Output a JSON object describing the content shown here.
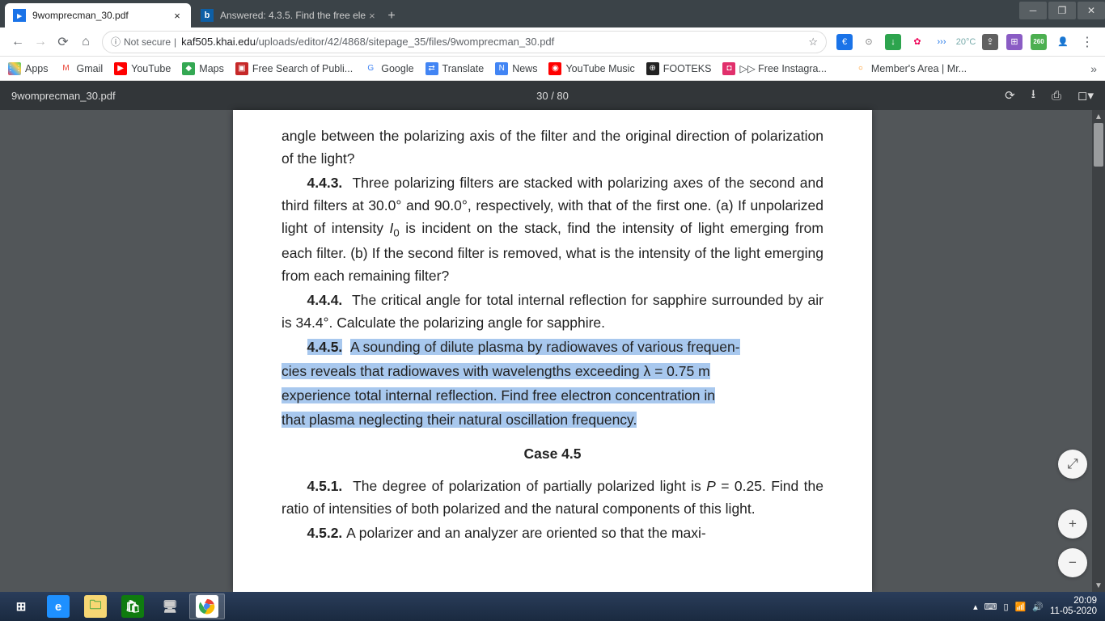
{
  "tabs": [
    {
      "title": "9womprecman_30.pdf",
      "active": true,
      "icon_bg": "#1a73e8",
      "icon_text": "▸"
    },
    {
      "title": "Answered: 4.3.5. Find the free ele",
      "active": false,
      "icon_bg": "#0d5fa6",
      "icon_text": "b"
    }
  ],
  "address": {
    "secure_label": "Not secure",
    "host": "kaf505.khai.edu",
    "path": "/uploads/editor/42/4868/sitepage_35/files/9womprecman_30.pdf"
  },
  "ext_icons": [
    {
      "bg": "#1a73e8",
      "label": "€"
    },
    {
      "bg": "#ffffff",
      "label": "⊙",
      "fg": "#777"
    },
    {
      "bg": "#2da44e",
      "label": "↓"
    },
    {
      "bg": "#ffffff",
      "label": "✿",
      "fg": "#e05"
    },
    {
      "bg": "transparent",
      "label": "›››",
      "fg": "#1a73e8"
    },
    {
      "bg": "transparent",
      "label": "20°C",
      "fg": "#7aa"
    },
    {
      "bg": "#606060",
      "label": "⇪"
    },
    {
      "bg": "#8a5cc4",
      "label": "⊞"
    },
    {
      "bg": "#4caf50",
      "label": "260",
      "badge": true
    },
    {
      "bg": "transparent",
      "label": "👤",
      "fg": "#aaa"
    }
  ],
  "bookmarks": [
    {
      "label": "Apps",
      "ic_bg": "linear-gradient(45deg,#f44,#4af,#fc4,#4c6)",
      "ic": "⋮⋮"
    },
    {
      "label": "Gmail",
      "ic_bg": "#fff",
      "ic": "M",
      "ic_fg": "#ea4335"
    },
    {
      "label": "YouTube",
      "ic_bg": "#ff0000",
      "ic": "▶"
    },
    {
      "label": "Maps",
      "ic_bg": "#34a853",
      "ic": "◆"
    },
    {
      "label": "Free Search of Publi...",
      "ic_bg": "#c62828",
      "ic": "▣"
    },
    {
      "label": "Google",
      "ic_bg": "#fff",
      "ic": "G",
      "ic_fg": "#4285f4"
    },
    {
      "label": "Translate",
      "ic_bg": "#4285f4",
      "ic": "⇄"
    },
    {
      "label": "News",
      "ic_bg": "#4285f4",
      "ic": "N"
    },
    {
      "label": "YouTube Music",
      "ic_bg": "#ff0000",
      "ic": "◉"
    },
    {
      "label": "FOOTEKS",
      "ic_bg": "#222",
      "ic": "⊕"
    },
    {
      "label": "▷▷ Free Instagra...",
      "ic_bg": "#e1306c",
      "ic": "◘"
    },
    {
      "label": "Member's Area | Mr...",
      "ic_bg": "#fff",
      "ic": "○",
      "ic_fg": "#f80",
      "gap": true
    }
  ],
  "pdf": {
    "title": "9womprecman_30.pdf",
    "page_label": "30 / 80"
  },
  "doc": {
    "p1": "angle between the polarizing axis of the filter and the original direction of polarization of the light?",
    "p2_num": "4.4.3.",
    "p2": "Three polarizing filters are stacked with polarizing axes of the second and third filters at 30.0° and 90.0°, respectively, with that of the first one. (a) If unpolarized light of intensity ",
    "p2_i": "I",
    "p2_sub": "0",
    "p2b": " is incident on the stack, find the intensity of light emerging from each filter. (b) If the second filter is removed, what is the intensity of the light emerging from each remaining filter?",
    "p3_num": "4.4.4.",
    "p3": "The critical angle for total internal reflection for sapphire surrounded by air is 34.4°. Calculate the polarizing angle for sapphire.",
    "p4_num": "4.4.5.",
    "p4a": "A sounding of dilute plasma by radiowaves of various frequen-",
    "p4b": "cies reveals that radiowaves with wavelengths exceeding λ = 0.75 m",
    "p4c": "experience total internal reflection. Find free electron concentration in",
    "p4d": "that plasma neglecting their natural oscillation frequency.",
    "case": "Case 4.5",
    "p5_num": "4.5.1.",
    "p5a": "The degree of polarization of partially polarized light is ",
    "p5_i": "P",
    "p5b": " = 0.25. Find the ratio of intensities of both polarized and the natural components of this light.",
    "p6_num": "4.5.2.",
    "p6": "A polarizer and an analyzer are oriented so that the maxi-"
  },
  "taskbar_items": [
    {
      "bg": "transparent",
      "glyph": "⊞",
      "color": "#fff",
      "win": true
    },
    {
      "bg": "#1e90ff",
      "glyph": "e",
      "color": "#fff"
    },
    {
      "bg": "#f7d774",
      "glyph": "🗀",
      "color": "#5a4"
    },
    {
      "bg": "#0f7b0f",
      "glyph": "🛍",
      "color": "#fff"
    },
    {
      "bg": "transparent",
      "glyph": "🖥",
      "color": "#ccc"
    },
    {
      "bg": "#fff",
      "glyph": "G",
      "chrome": true,
      "active": true
    }
  ],
  "tray": {
    "time": "20:09",
    "date": "11-05-2020"
  }
}
